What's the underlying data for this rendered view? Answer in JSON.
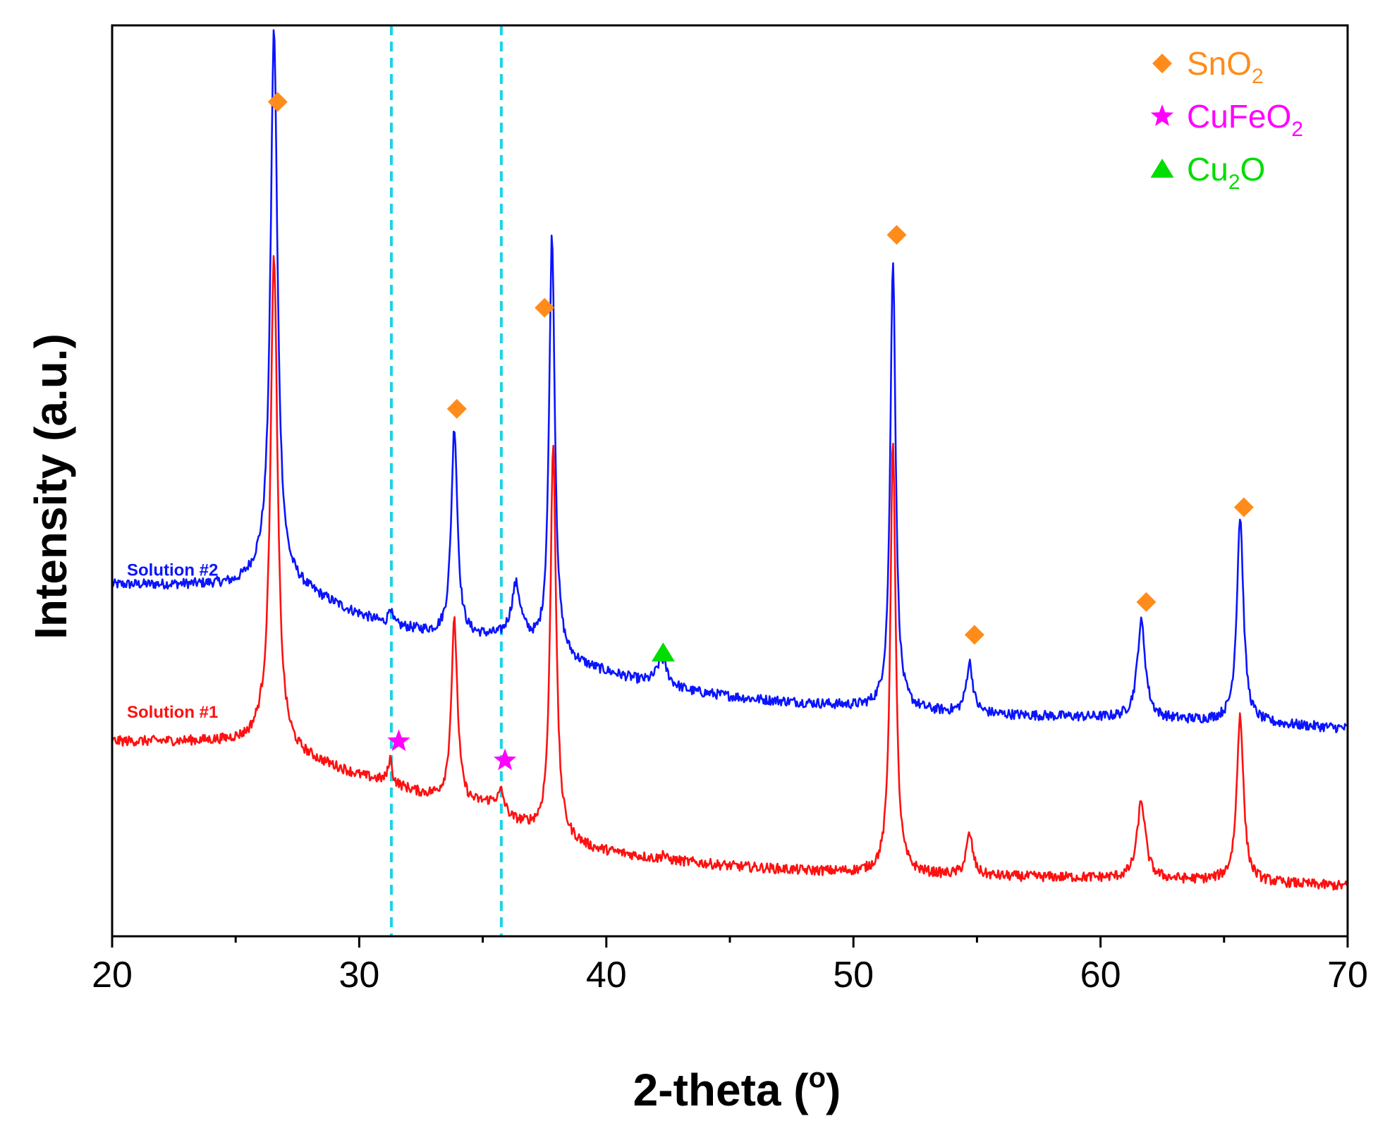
{
  "chart_data": {
    "type": "line",
    "title": "",
    "xlabel": "2-theta (",
    "xlabel_degree": "o",
    "xlabel_close": ")",
    "ylabel": "Intensity (a.u.)",
    "xlim": [
      20,
      70
    ],
    "ylim": [
      0,
      100
    ],
    "xticks": [
      20,
      30,
      40,
      50,
      60,
      70
    ],
    "minor_xticks": [
      25,
      35,
      45,
      55,
      65
    ],
    "yticks_shown": false,
    "grid": false,
    "reference_lines": [
      31.3,
      35.75
    ],
    "colors": {
      "solution2": "#0a14ff",
      "solution1": "#ff1010",
      "sno2": "#ff8c1a",
      "cufeo2": "#ff00ff",
      "cu2o": "#00dd00",
      "reference": "#1ad3e6"
    },
    "series": [
      {
        "name": "Solution #2",
        "color": "#0a14ff",
        "baseline": [
          [
            20,
            38.6
          ],
          [
            25,
            38.6
          ],
          [
            25.9,
            39.5
          ],
          [
            27.5,
            38.3
          ],
          [
            29.5,
            35.8
          ],
          [
            31,
            34.3
          ],
          [
            33,
            33.2
          ],
          [
            34.5,
            32.8
          ],
          [
            35.7,
            32.8
          ],
          [
            36.3,
            33.6
          ],
          [
            37.5,
            30.8
          ],
          [
            39.5,
            29.3
          ],
          [
            41.5,
            27.9
          ],
          [
            43.5,
            26.8
          ],
          [
            46,
            26
          ],
          [
            49,
            25.4
          ],
          [
            52,
            24.8
          ],
          [
            56,
            24.3
          ],
          [
            60,
            24
          ],
          [
            65,
            23.6
          ],
          [
            70,
            22.8
          ]
        ],
        "peaks": [
          {
            "x": 26.55,
            "h": 60.5,
            "w": 0.17
          },
          {
            "x": 31.25,
            "h": 2.0,
            "w": 0.08
          },
          {
            "x": 33.85,
            "h": 22.8,
            "w": 0.15
          },
          {
            "x": 36.35,
            "h": 4.8,
            "w": 0.2
          },
          {
            "x": 37.8,
            "h": 46.3,
            "w": 0.14
          },
          {
            "x": 42.25,
            "h": 2.9,
            "w": 0.25
          },
          {
            "x": 51.6,
            "h": 49.6,
            "w": 0.13
          },
          {
            "x": 54.7,
            "h": 5.5,
            "w": 0.16
          },
          {
            "x": 61.65,
            "h": 10.6,
            "w": 0.2
          },
          {
            "x": 65.65,
            "h": 22.6,
            "w": 0.16
          }
        ],
        "noise": 0.55
      },
      {
        "name": "Solution #1",
        "color": "#ff1010",
        "baseline": [
          [
            20,
            21.4
          ],
          [
            25.5,
            21.4
          ],
          [
            26,
            22
          ],
          [
            27.5,
            19.9
          ],
          [
            30,
            17.6
          ],
          [
            31,
            17
          ],
          [
            32.5,
            15.6
          ],
          [
            33.2,
            15.2
          ],
          [
            34.5,
            14.4
          ],
          [
            35.5,
            14.6
          ],
          [
            36.2,
            12.7
          ],
          [
            37.5,
            11.2
          ],
          [
            39.5,
            9.5
          ],
          [
            42,
            8.5
          ],
          [
            45,
            7.7
          ],
          [
            48,
            7.2
          ],
          [
            51,
            6.9
          ],
          [
            55,
            6.6
          ],
          [
            60,
            6.4
          ],
          [
            65,
            6.1
          ],
          [
            70,
            5.5
          ]
        ],
        "peaks": [
          {
            "x": 26.55,
            "h": 53.5,
            "w": 0.17
          },
          {
            "x": 31.25,
            "h": 2.7,
            "w": 0.09
          },
          {
            "x": 33.85,
            "h": 19.7,
            "w": 0.15
          },
          {
            "x": 35.75,
            "h": 1.8,
            "w": 0.12
          },
          {
            "x": 37.85,
            "h": 43.3,
            "w": 0.14
          },
          {
            "x": 42.3,
            "h": 0.8,
            "w": 0.06
          },
          {
            "x": 51.6,
            "h": 47.8,
            "w": 0.13
          },
          {
            "x": 54.7,
            "h": 4.5,
            "w": 0.16
          },
          {
            "x": 61.65,
            "h": 8.5,
            "w": 0.2
          },
          {
            "x": 65.65,
            "h": 18.4,
            "w": 0.16
          }
        ],
        "noise": 0.55
      }
    ],
    "series_labels": [
      {
        "text": "Solution #2",
        "x": 20.6,
        "y": 39.6
      },
      {
        "text": "Solution #1",
        "x": 20.6,
        "y": 24.0
      }
    ],
    "markers": [
      {
        "phase": "SnO2",
        "symbol": "diamond",
        "x": 26.7,
        "y": 91.6
      },
      {
        "phase": "SnO2",
        "symbol": "diamond",
        "x": 33.95,
        "y": 57.9
      },
      {
        "phase": "SnO2",
        "symbol": "diamond",
        "x": 37.5,
        "y": 69.0
      },
      {
        "phase": "SnO2",
        "symbol": "diamond",
        "x": 51.75,
        "y": 77.0
      },
      {
        "phase": "SnO2",
        "symbol": "diamond",
        "x": 54.9,
        "y": 33.1
      },
      {
        "phase": "SnO2",
        "symbol": "diamond",
        "x": 61.85,
        "y": 36.7
      },
      {
        "phase": "SnO2",
        "symbol": "diamond",
        "x": 65.8,
        "y": 47.1
      },
      {
        "phase": "CuFeO2",
        "symbol": "star",
        "x": 31.6,
        "y": 21.4
      },
      {
        "phase": "CuFeO2",
        "symbol": "star",
        "x": 35.9,
        "y": 19.3
      },
      {
        "phase": "Cu2O",
        "symbol": "triangle",
        "x": 42.3,
        "y": 31.1
      }
    ],
    "legend": {
      "placement": "top-right",
      "entries": [
        {
          "symbol": "diamond",
          "base": "SnO",
          "sub": "2",
          "rest": "",
          "color": "#ff8c1a"
        },
        {
          "symbol": "star",
          "base": "CuFeO",
          "sub": "2",
          "rest": "",
          "color": "#ff00ff"
        },
        {
          "symbol": "triangle",
          "base": "Cu",
          "sub": "2",
          "rest": "O",
          "color": "#00dd00"
        }
      ]
    }
  }
}
